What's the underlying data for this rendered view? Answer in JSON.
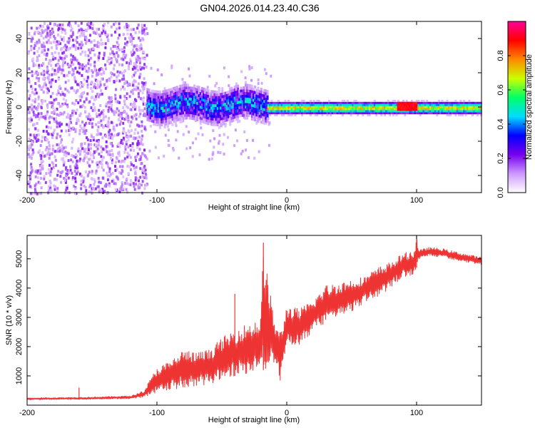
{
  "title": "GN04.2026.014.23.40.C36",
  "chart_data": [
    {
      "type": "heatmap",
      "name": "spectrogram",
      "xlabel": "Height of straight line (km)",
      "ylabel": "Frequency (Hz)",
      "xlim": [
        -200,
        150
      ],
      "ylim": [
        -50,
        50
      ],
      "xticks": [
        -200,
        -100,
        0,
        100
      ],
      "xtick_labels": [
        "-200",
        "-100",
        "0",
        "100"
      ],
      "yticks": [
        -40,
        -20,
        0,
        20,
        40
      ],
      "ytick_labels": [
        "-40",
        "-20",
        "0",
        "20",
        "40"
      ],
      "colorbar": {
        "label": "Normalized spectral amplitude",
        "range": [
          0,
          1
        ],
        "ticks": [
          0.0,
          0.2,
          0.4,
          0.6,
          0.8
        ],
        "tick_labels": [
          "0.0",
          "0.2",
          "0.4",
          "0.6",
          "0.8"
        ],
        "colormap": [
          "#ffffff",
          "#cc99ff",
          "#7700ee",
          "#0000ff",
          "#00ddff",
          "#00ff66",
          "#ccff00",
          "#ff8800",
          "#ff0000",
          "#ff0099"
        ]
      },
      "regions": [
        {
          "x_range": [
            -200,
            -108
          ],
          "freq_range": [
            -50,
            50
          ],
          "amplitude": 0.1,
          "note": "broadband scatter"
        },
        {
          "x_range": [
            -108,
            -15
          ],
          "center_freq": 2,
          "half_width_hz": 8,
          "amplitude": 0.35
        },
        {
          "x_range": [
            -15,
            150
          ],
          "center_freq": 0,
          "half_width_hz": 3,
          "amplitude": 0.7
        },
        {
          "x_range": [
            85,
            100
          ],
          "center_freq": 1,
          "half_width_hz": 2,
          "amplitude": 0.95
        }
      ]
    },
    {
      "type": "line",
      "name": "snr",
      "xlabel": "Height of straight line (km)",
      "ylabel": "SNR (10 * v/v)",
      "xlim": [
        -200,
        150
      ],
      "ylim": [
        0,
        5800
      ],
      "xticks": [
        -200,
        -100,
        0,
        100
      ],
      "xtick_labels": [
        "-200",
        "-100",
        "0",
        "100"
      ],
      "yticks": [
        1000,
        2000,
        3000,
        4000,
        5000
      ],
      "ytick_labels": [
        "1000",
        "2000",
        "3000",
        "4000",
        "5000"
      ],
      "color": "#ee3333",
      "envelope": {
        "x": [
          -200,
          -150,
          -120,
          -110,
          -100,
          -90,
          -80,
          -70,
          -60,
          -50,
          -40,
          -30,
          -20,
          -18,
          -10,
          -5,
          0,
          10,
          20,
          30,
          40,
          50,
          60,
          70,
          80,
          90,
          98,
          100,
          102,
          110,
          120,
          130,
          150
        ],
        "low": [
          180,
          200,
          220,
          260,
          400,
          500,
          600,
          650,
          700,
          900,
          1000,
          1100,
          1150,
          1200,
          1400,
          800,
          2100,
          2000,
          2500,
          2800,
          3000,
          3200,
          3500,
          3700,
          4000,
          4400,
          4400,
          4700,
          5000,
          5100,
          5050,
          4950,
          4800
        ],
        "high": [
          250,
          280,
          320,
          500,
          1300,
          1500,
          1900,
          1800,
          1900,
          2300,
          2600,
          2800,
          3000,
          5500,
          3000,
          2500,
          3400,
          3300,
          3600,
          4100,
          4200,
          4300,
          4400,
          4700,
          4900,
          5200,
          5300,
          5800,
          5300,
          5400,
          5350,
          5250,
          5050
        ]
      },
      "spikes": [
        {
          "x": -160,
          "y": 600
        },
        {
          "x": -40,
          "y": 3800
        },
        {
          "x": -18,
          "y": 5550
        },
        {
          "x": 100,
          "y": 5800
        }
      ]
    }
  ]
}
